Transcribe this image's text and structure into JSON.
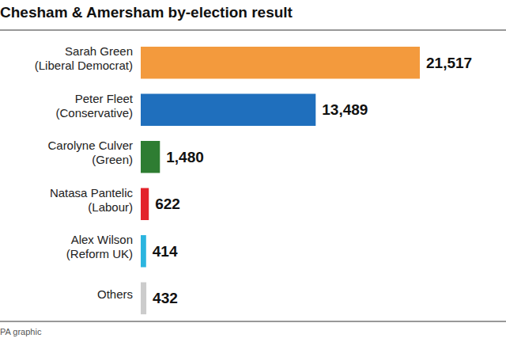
{
  "chart_data": {
    "type": "bar",
    "orientation": "horizontal",
    "title": "Chesham & Amersham by-election result",
    "categories": [
      "Sarah Green\n(Liberal Democrat)",
      "Peter Fleet\n(Conservative)",
      "Carolyne Culver\n(Green)",
      "Natasa Pantelic\n(Labour)",
      "Alex Wilson\n(Reform UK)",
      "Others"
    ],
    "values": [
      21517,
      13489,
      1480,
      622,
      414,
      432
    ],
    "value_labels": [
      "21,517",
      "13,489",
      "1,480",
      "622",
      "414",
      "432"
    ],
    "colors": [
      "#f39a3d",
      "#1f6fbd",
      "#2e7d32",
      "#e3232b",
      "#2bb5df",
      "#cccccc"
    ],
    "data_labels": true,
    "tick_labels": "y",
    "annotations": [
      "PA graphic"
    ]
  }
}
